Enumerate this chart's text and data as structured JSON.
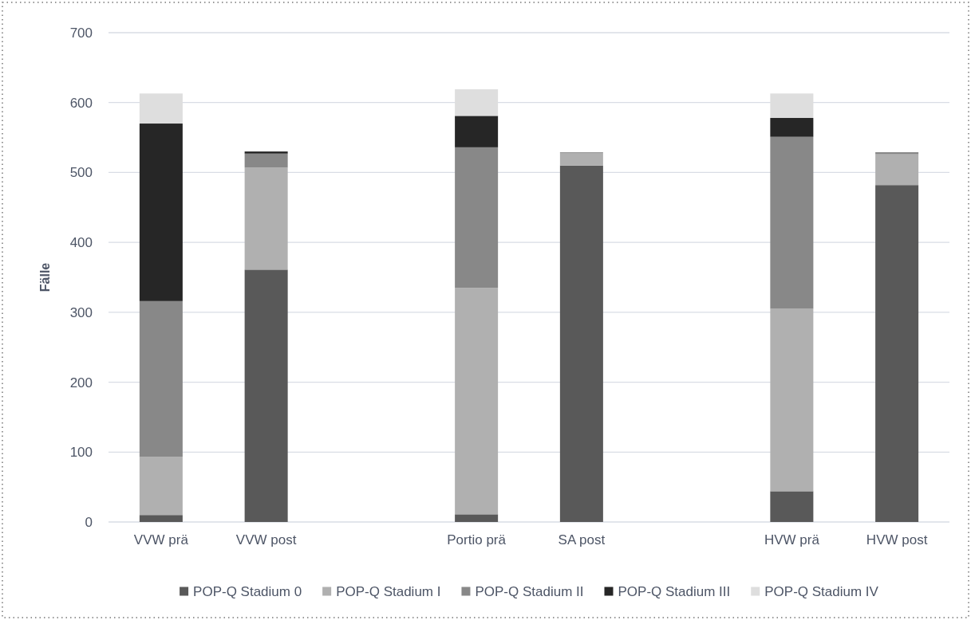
{
  "chart_data": {
    "type": "bar",
    "stacked": true,
    "ylabel": "Fälle",
    "categories": [
      "VVW prä",
      "VVW post",
      null,
      "Portio prä",
      "SA post",
      null,
      "HVW prä",
      "HVW post"
    ],
    "series": [
      {
        "name": "POP-Q Stadium 0",
        "color": "#595959",
        "values": [
          10,
          361,
          null,
          11,
          510,
          null,
          44,
          482
        ]
      },
      {
        "name": "POP-Q Stadium I",
        "color": "#b0b0b0",
        "values": [
          83,
          146,
          null,
          324,
          18,
          null,
          261,
          44
        ]
      },
      {
        "name": "POP-Q Stadium II",
        "color": "#888888",
        "values": [
          223,
          20,
          null,
          201,
          1,
          null,
          246,
          3
        ]
      },
      {
        "name": "POP-Q Stadium III",
        "color": "#262626",
        "values": [
          254,
          3,
          null,
          45,
          0,
          null,
          27,
          0
        ]
      },
      {
        "name": "POP-Q Stadium IV",
        "color": "#dedede",
        "values": [
          43,
          0,
          null,
          38,
          0,
          null,
          35,
          0
        ]
      }
    ],
    "ylim": [
      0,
      700
    ],
    "yticks": [
      0,
      100,
      200,
      300,
      400,
      500,
      600,
      700
    ],
    "grid": "y",
    "legend": "bottom"
  }
}
